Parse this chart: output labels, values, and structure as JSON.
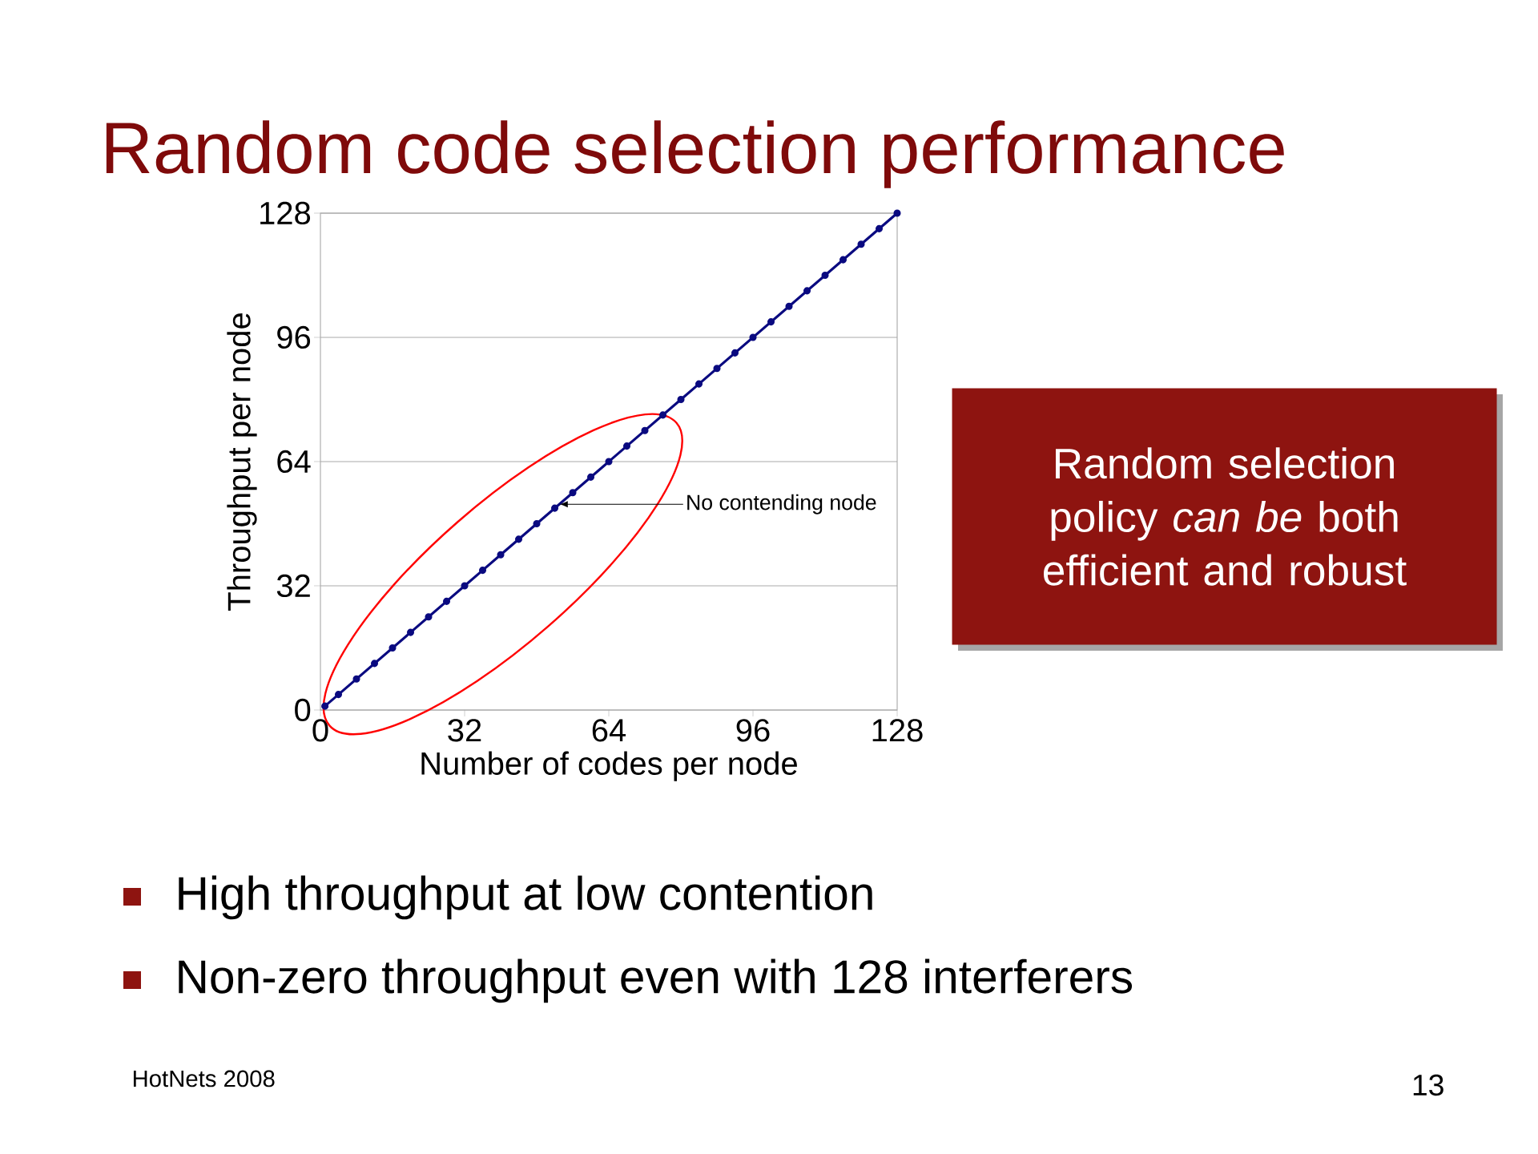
{
  "chart_data": {
    "type": "line",
    "title": "Random code selection performance",
    "xlabel": "Number of codes per node",
    "ylabel": "Throughput per node",
    "x": [
      1,
      4,
      8,
      12,
      16,
      20,
      24,
      28,
      32,
      36,
      40,
      44,
      48,
      52,
      56,
      60,
      64,
      68,
      72,
      76,
      80,
      84,
      88,
      92,
      96,
      100,
      104,
      108,
      112,
      116,
      120,
      124,
      128
    ],
    "series": [
      {
        "color": "#0a0a80",
        "values": [
          1,
          4,
          8,
          12,
          16,
          20,
          24,
          28,
          32,
          36,
          40,
          44,
          48,
          52,
          56,
          60,
          64,
          68,
          72,
          76,
          80,
          84,
          88,
          92,
          96,
          100,
          104,
          108,
          112,
          116,
          120,
          124,
          128
        ]
      }
    ],
    "xlim": [
      0,
      128
    ],
    "ylim": [
      0,
      128
    ],
    "xticks": [
      0,
      32,
      64,
      96,
      128
    ],
    "yticks": [
      0,
      32,
      64,
      96,
      128
    ],
    "grid": "y",
    "marker": "circle",
    "line_style": "solid",
    "annotations": [
      {
        "text": "No contending node",
        "x": 53,
        "y": 53
      },
      "Random selection policy *can be* both efficient and robust",
      "High throughput at low contention",
      "Non-zero throughput even with 128 interferers",
      "HotNets 2008",
      "13"
    ]
  }
}
